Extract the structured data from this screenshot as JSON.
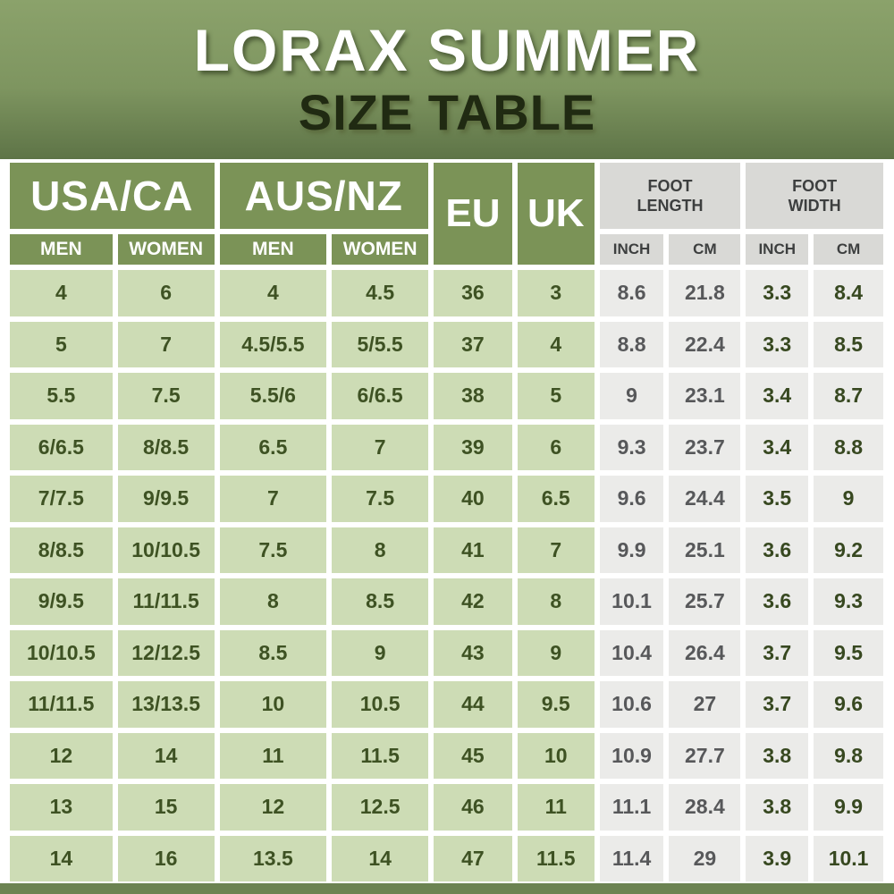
{
  "colors": {
    "hero_top": "#8ba26b",
    "hero_bottom": "#5e7447",
    "header_green": "#7b9357",
    "gray_header_bg": "#d9d9d6",
    "gray_header_text": "#3d3f3f",
    "cell_green": "#cddcb5",
    "cell_green_text": "#3e5223",
    "cell_gray": "#ebebe9",
    "cell_gray_text": "#57585a",
    "cell_width_text": "#374820",
    "bottom_bar": "#6c8352",
    "title_dark": "#202a12"
  },
  "title": {
    "line1": "LORAX SUMMER",
    "line2": "SIZE TABLE"
  },
  "header": {
    "usa": "USA/CA",
    "aus": "AUS/NZ",
    "eu": "EU",
    "uk": "UK",
    "foot_length": "FOOT\nLENGTH",
    "foot_width": "FOOT\nWIDTH",
    "men": "MEN",
    "women": "WOMEN",
    "inch": "INCH",
    "cm": "CM"
  },
  "chart_data": {
    "type": "table",
    "title": "LORAX SUMMER SIZE TABLE",
    "columns": [
      "USA/CA MEN",
      "USA/CA WOMEN",
      "AUS/NZ MEN",
      "AUS/NZ WOMEN",
      "EU",
      "UK",
      "FOOT LENGTH INCH",
      "FOOT LENGTH CM",
      "FOOT WIDTH INCH",
      "FOOT WIDTH CM"
    ],
    "rows": [
      [
        "4",
        "6",
        "4",
        "4.5",
        "36",
        "3",
        "8.6",
        "21.8",
        "3.3",
        "8.4"
      ],
      [
        "5",
        "7",
        "4.5/5.5",
        "5/5.5",
        "37",
        "4",
        "8.8",
        "22.4",
        "3.3",
        "8.5"
      ],
      [
        "5.5",
        "7.5",
        "5.5/6",
        "6/6.5",
        "38",
        "5",
        "9",
        "23.1",
        "3.4",
        "8.7"
      ],
      [
        "6/6.5",
        "8/8.5",
        "6.5",
        "7",
        "39",
        "6",
        "9.3",
        "23.7",
        "3.4",
        "8.8"
      ],
      [
        "7/7.5",
        "9/9.5",
        "7",
        "7.5",
        "40",
        "6.5",
        "9.6",
        "24.4",
        "3.5",
        "9"
      ],
      [
        "8/8.5",
        "10/10.5",
        "7.5",
        "8",
        "41",
        "7",
        "9.9",
        "25.1",
        "3.6",
        "9.2"
      ],
      [
        "9/9.5",
        "11/11.5",
        "8",
        "8.5",
        "42",
        "8",
        "10.1",
        "25.7",
        "3.6",
        "9.3"
      ],
      [
        "10/10.5",
        "12/12.5",
        "8.5",
        "9",
        "43",
        "9",
        "10.4",
        "26.4",
        "3.7",
        "9.5"
      ],
      [
        "11/11.5",
        "13/13.5",
        "10",
        "10.5",
        "44",
        "9.5",
        "10.6",
        "27",
        "3.7",
        "9.6"
      ],
      [
        "12",
        "14",
        "11",
        "11.5",
        "45",
        "10",
        "10.9",
        "27.7",
        "3.8",
        "9.8"
      ],
      [
        "13",
        "15",
        "12",
        "12.5",
        "46",
        "11",
        "11.1",
        "28.4",
        "3.8",
        "9.9"
      ],
      [
        "14",
        "16",
        "13.5",
        "14",
        "47",
        "11.5",
        "11.4",
        "29",
        "3.9",
        "10.1"
      ]
    ]
  }
}
